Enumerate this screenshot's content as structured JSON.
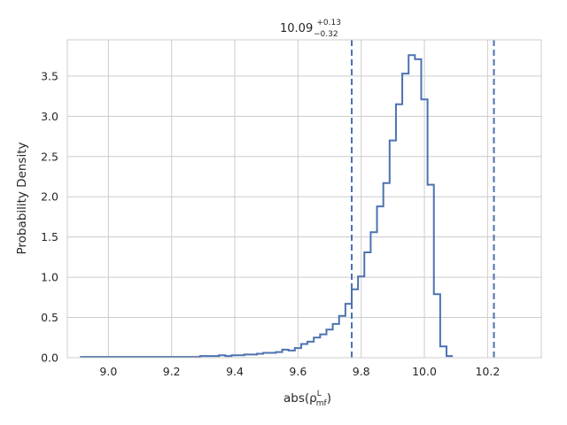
{
  "chart_data": {
    "type": "step-histogram",
    "title": {
      "value": "10.09",
      "upper": "+0.13",
      "lower": "−0.32"
    },
    "xlabel": {
      "base": "abs(",
      "symbol": "ρ",
      "sup": "L",
      "sub": "mf",
      "close": ")"
    },
    "ylabel": "Probability Density",
    "xlim": [
      8.87,
      10.37
    ],
    "ylim": [
      0,
      3.95
    ],
    "xticks": [
      9.0,
      9.2,
      9.4,
      9.6,
      9.8,
      10.0,
      10.2
    ],
    "xtick_labels": [
      "9.0",
      "9.2",
      "9.4",
      "9.6",
      "9.8",
      "10.0",
      "10.2"
    ],
    "yticks": [
      0.0,
      0.5,
      1.0,
      1.5,
      2.0,
      2.5,
      3.0,
      3.5
    ],
    "ytick_labels": [
      "0.0",
      "0.5",
      "1.0",
      "1.5",
      "2.0",
      "2.5",
      "3.0",
      "3.5"
    ],
    "grid": true,
    "bin_start": 8.91,
    "bin_width": 0.02,
    "values": [
      0.01,
      0.01,
      0.01,
      0.01,
      0.01,
      0.01,
      0.01,
      0.01,
      0.01,
      0.01,
      0.01,
      0.01,
      0.01,
      0.01,
      0.01,
      0.01,
      0.01,
      0.01,
      0.01,
      0.02,
      0.02,
      0.02,
      0.03,
      0.02,
      0.03,
      0.03,
      0.04,
      0.04,
      0.05,
      0.06,
      0.06,
      0.07,
      0.1,
      0.09,
      0.12,
      0.17,
      0.2,
      0.25,
      0.29,
      0.35,
      0.42,
      0.52,
      0.67,
      0.85,
      1.01,
      1.31,
      1.56,
      1.88,
      2.17,
      2.7,
      3.15,
      3.53,
      3.76,
      3.71,
      3.21,
      2.15,
      0.79,
      0.14,
      0.02
    ],
    "vlines": [
      9.77,
      10.22
    ],
    "colors": {
      "line": "#4c72b0",
      "grid": "#cccccc",
      "spine": "#cccccc"
    }
  }
}
